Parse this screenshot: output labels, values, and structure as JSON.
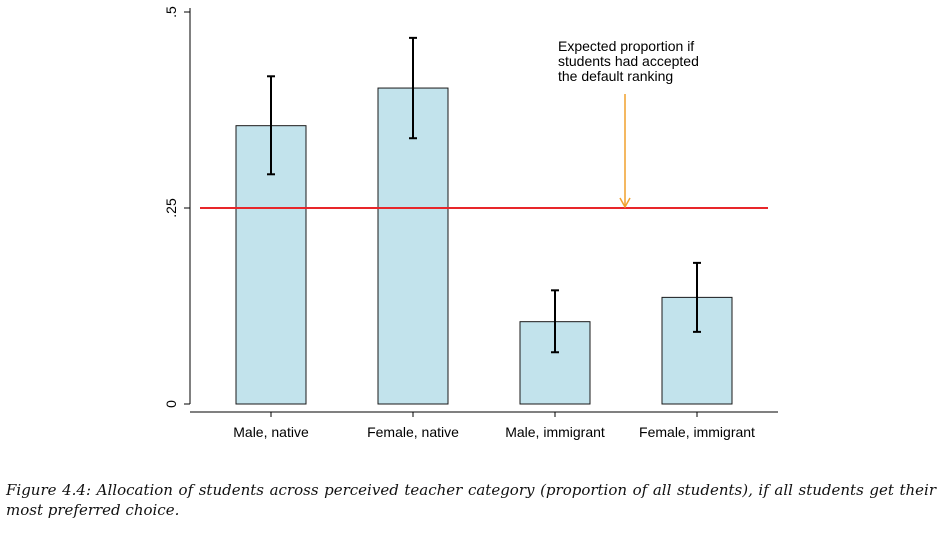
{
  "chart_data": {
    "type": "bar",
    "categories": [
      "Male, native",
      "Female, native",
      "Male, immigrant",
      "Female, immigrant"
    ],
    "values": [
      0.355,
      0.403,
      0.105,
      0.136
    ],
    "error_low": [
      0.293,
      0.339,
      0.066,
      0.092
    ],
    "error_high": [
      0.418,
      0.467,
      0.145,
      0.18
    ],
    "ylim": [
      0,
      0.5
    ],
    "yticks": [
      0,
      0.25,
      0.5
    ],
    "ytick_labels": [
      "0",
      ".25",
      ".5"
    ],
    "reference_line": {
      "y": 0.25,
      "color": "#e8262a"
    },
    "annotation": {
      "lines": [
        "Expected proportion if",
        "students had accepted",
        "the default ranking"
      ],
      "arrow_color": "#f0a12c"
    },
    "bar_color": "#c2e3ec",
    "bar_edge_color": "#1a1a1a",
    "grid": false,
    "legend": "none"
  },
  "caption": {
    "label": "Figure 4.4:",
    "text": "Allocation of students across perceived teacher category (proportion of all students), if all students get their most preferred choice."
  }
}
